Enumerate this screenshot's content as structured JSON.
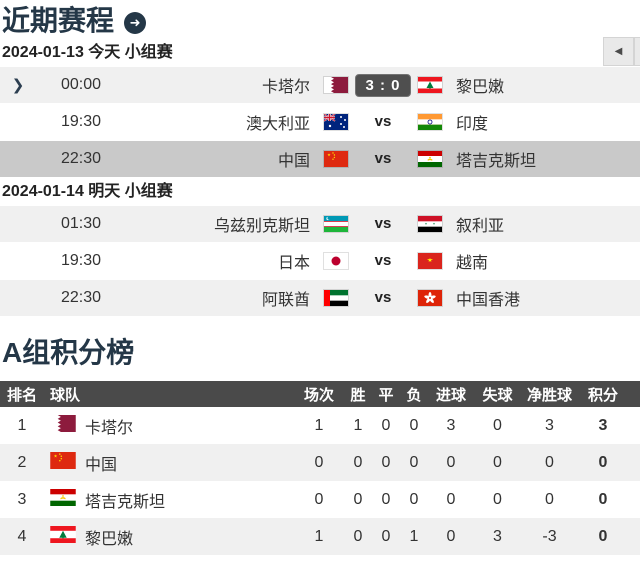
{
  "colors": {
    "accent_dark": "#243747",
    "highlight_row": "#c9c9c9",
    "light_row": "#f0f0f0",
    "table_header_bg": "#4a4a4a",
    "score_badge_bg": "#4f4f4f"
  },
  "schedule": {
    "title": "近期赛程",
    "title_icon": "arrow-right-circle-icon",
    "nav": {
      "prev_label": "◀",
      "next_label": "◀"
    },
    "groups": [
      {
        "date_label": "2024-01-13 今天 小组赛",
        "matches": [
          {
            "time": "00:00",
            "home": "卡塔尔",
            "home_flag": "qatar",
            "center_type": "score",
            "center": "3 : 0",
            "away": "黎巴嫩",
            "away_flag": "lebanon",
            "chevron": "❯",
            "row_bg": "light"
          },
          {
            "time": "19:30",
            "home": "澳大利亚",
            "home_flag": "australia",
            "center_type": "vs",
            "center": "vs",
            "away": "印度",
            "away_flag": "india",
            "chevron": "",
            "row_bg": "white"
          },
          {
            "time": "22:30",
            "home": "中国",
            "home_flag": "china",
            "center_type": "vs",
            "center": "vs",
            "away": "塔吉克斯坦",
            "away_flag": "tajikistan",
            "chevron": "",
            "row_bg": "hl"
          }
        ]
      },
      {
        "date_label": "2024-01-14 明天 小组赛",
        "matches": [
          {
            "time": "01:30",
            "home": "乌兹别克斯坦",
            "home_flag": "uzbekistan",
            "center_type": "vs",
            "center": "vs",
            "away": "叙利亚",
            "away_flag": "syria",
            "chevron": "",
            "row_bg": "light"
          },
          {
            "time": "19:30",
            "home": "日本",
            "home_flag": "japan",
            "center_type": "vs",
            "center": "vs",
            "away": "越南",
            "away_flag": "vietnam",
            "chevron": "",
            "row_bg": "white"
          },
          {
            "time": "22:30",
            "home": "阿联酋",
            "home_flag": "uae",
            "center_type": "vs",
            "center": "vs",
            "away": "中国香港",
            "away_flag": "hongkong",
            "chevron": "",
            "row_bg": "light"
          }
        ]
      }
    ]
  },
  "standings": {
    "title": "A组积分榜",
    "columns": [
      "排名",
      "球队",
      "场次",
      "胜",
      "平",
      "负",
      "进球",
      "失球",
      "净胜球",
      "积分"
    ],
    "rows": [
      {
        "rank": "1",
        "team": "卡塔尔",
        "flag": "qatar",
        "played": "1",
        "win": "1",
        "draw": "0",
        "loss": "0",
        "gf": "3",
        "ga": "0",
        "gd": "3",
        "pts": "3"
      },
      {
        "rank": "2",
        "team": "中国",
        "flag": "china",
        "played": "0",
        "win": "0",
        "draw": "0",
        "loss": "0",
        "gf": "0",
        "ga": "0",
        "gd": "0",
        "pts": "0"
      },
      {
        "rank": "3",
        "team": "塔吉克斯坦",
        "flag": "tajikistan",
        "played": "0",
        "win": "0",
        "draw": "0",
        "loss": "0",
        "gf": "0",
        "ga": "0",
        "gd": "0",
        "pts": "0"
      },
      {
        "rank": "4",
        "team": "黎巴嫩",
        "flag": "lebanon",
        "played": "1",
        "win": "0",
        "draw": "0",
        "loss": "1",
        "gf": "0",
        "ga": "3",
        "gd": "-3",
        "pts": "0"
      }
    ]
  }
}
